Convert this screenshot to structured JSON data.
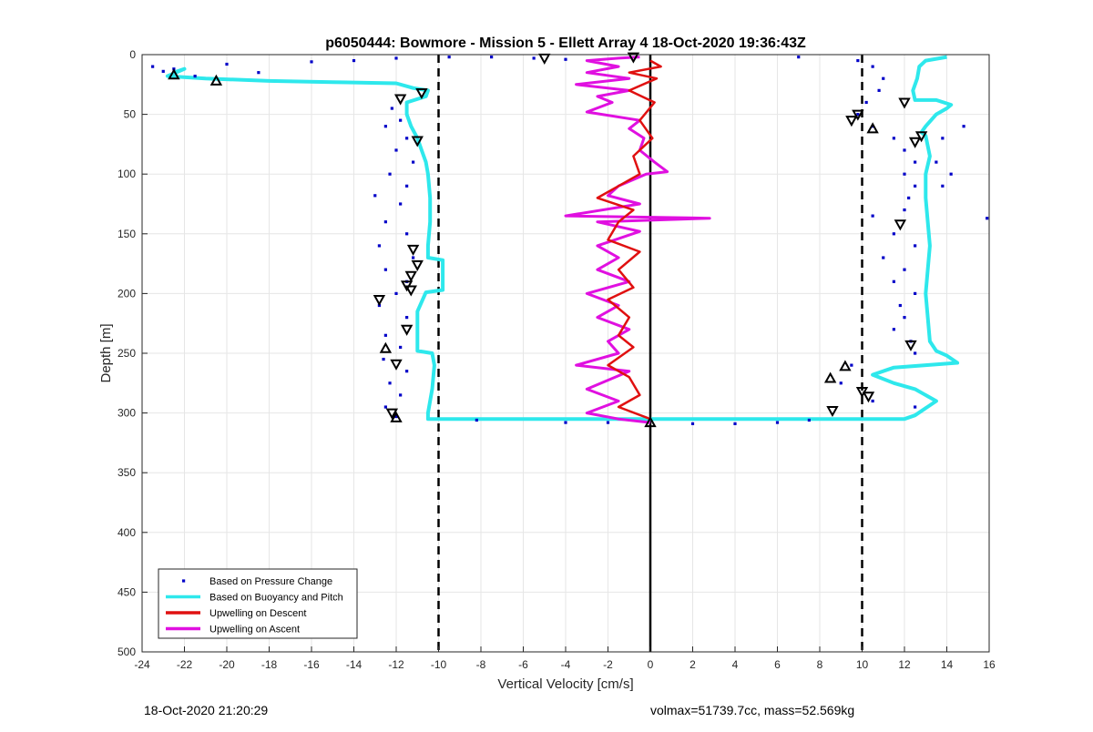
{
  "footer": {
    "left": "18-Oct-2020 21:20:29",
    "right": "volmax=51739.7cc, mass=52.569kg"
  },
  "colors": {
    "pressure": "#0000c8",
    "buoyancy": "#2ee8ec",
    "descent": "#e01010",
    "ascent": "#e010e0",
    "grid": "#e6e6e6",
    "axis": "#262626"
  },
  "chart_data": {
    "type": "line",
    "title": "p6050444: Bowmore - Mission 5 - Ellett Array 4 18-Oct-2020 19:36:43Z",
    "xlabel": "Vertical Velocity [cm/s]",
    "ylabel": "Depth [m]",
    "xlim": [
      -24,
      16
    ],
    "ylim": [
      0,
      500
    ],
    "y_reversed": true,
    "grid": true,
    "xticks": [
      -24,
      -22,
      -20,
      -18,
      -16,
      -14,
      -12,
      -10,
      -8,
      -6,
      -4,
      -2,
      0,
      2,
      4,
      6,
      8,
      10,
      12,
      14,
      16
    ],
    "yticks": [
      0,
      50,
      100,
      150,
      200,
      250,
      300,
      350,
      400,
      450,
      500
    ],
    "legend_position": "bottom-left",
    "legend": [
      {
        "label": "Based on Pressure Change",
        "style": "dots",
        "color": "#0000c8"
      },
      {
        "label": "Based on Buoyancy and Pitch",
        "style": "line",
        "color": "#2ee8ec"
      },
      {
        "label": "Upwelling on Descent",
        "style": "line",
        "color": "#e01010"
      },
      {
        "label": "Upwelling on Ascent",
        "style": "line",
        "color": "#e010e0"
      }
    ],
    "reference_lines": [
      {
        "x": -10,
        "style": "dashed"
      },
      {
        "x": 10,
        "style": "dashed"
      },
      {
        "x": 0,
        "style": "solid"
      }
    ],
    "series": [
      {
        "name": "Based on Buoyancy and Pitch",
        "kind": "line",
        "segments": [
          [
            [
              -22.5,
              15
            ],
            [
              -22.0,
              12
            ],
            [
              -22.8,
              18
            ],
            [
              -21,
              20
            ],
            [
              -18,
              22
            ],
            [
              -15,
              23
            ],
            [
              -12,
              24
            ],
            [
              -11.2,
              28
            ],
            [
              -10.5,
              30
            ],
            [
              -10.6,
              35
            ],
            [
              -11.5,
              40
            ],
            [
              -11.5,
              50
            ],
            [
              -11.3,
              60
            ],
            [
              -11.0,
              70
            ],
            [
              -10.8,
              80
            ],
            [
              -10.6,
              90
            ],
            [
              -10.5,
              100
            ],
            [
              -10.4,
              120
            ],
            [
              -10.4,
              140
            ],
            [
              -10.5,
              160
            ],
            [
              -10.5,
              170
            ],
            [
              -9.8,
              172
            ],
            [
              -9.8,
              197
            ],
            [
              -10.6,
              199
            ],
            [
              -11.0,
              215
            ],
            [
              -11.0,
              240
            ],
            [
              -11.0,
              248
            ],
            [
              -10.3,
              250
            ],
            [
              -10.2,
              260
            ],
            [
              -10.3,
              280
            ],
            [
              -10.5,
              300
            ],
            [
              -10.5,
              305
            ],
            [
              0,
              305
            ],
            [
              8,
              305
            ],
            [
              12,
              305
            ],
            [
              12.5,
              302
            ],
            [
              13.5,
              290
            ],
            [
              12.5,
              280
            ],
            [
              11.5,
              275
            ],
            [
              10.5,
              268
            ],
            [
              11.5,
              262
            ],
            [
              13,
              260
            ],
            [
              14.5,
              258
            ],
            [
              14.0,
              252
            ],
            [
              13.5,
              248
            ],
            [
              13.2,
              240
            ],
            [
              13.1,
              220
            ],
            [
              13.0,
              200
            ],
            [
              13.1,
              180
            ],
            [
              13.2,
              160
            ],
            [
              13.1,
              140
            ],
            [
              13.0,
              120
            ],
            [
              13.0,
              100
            ],
            [
              13.2,
              85
            ],
            [
              13.0,
              68
            ],
            [
              12.8,
              65
            ],
            [
              13.0,
              60
            ],
            [
              13.5,
              50
            ],
            [
              14.0,
              45
            ],
            [
              14.2,
              42
            ],
            [
              13.5,
              38
            ],
            [
              12.5,
              38
            ],
            [
              12.4,
              30
            ],
            [
              12.6,
              20
            ],
            [
              12.7,
              10
            ],
            [
              13,
              5
            ],
            [
              14,
              2
            ]
          ]
        ]
      },
      {
        "name": "Upwelling on Ascent",
        "kind": "line",
        "points": [
          [
            -0.5,
            2
          ],
          [
            -1.5,
            3
          ],
          [
            -3,
            5
          ],
          [
            -1.5,
            10
          ],
          [
            -3.0,
            15
          ],
          [
            -1.0,
            20
          ],
          [
            -3.5,
            25
          ],
          [
            -1.0,
            30
          ],
          [
            -2.5,
            35
          ],
          [
            -1.8,
            40
          ],
          [
            -3.0,
            48
          ],
          [
            -0.5,
            55
          ],
          [
            -1.0,
            62
          ],
          [
            -0.3,
            70
          ],
          [
            -0.5,
            80
          ],
          [
            0.2,
            90
          ],
          [
            0.8,
            98
          ],
          [
            -0.2,
            100
          ],
          [
            -1.5,
            110
          ],
          [
            -2.0,
            118
          ],
          [
            -0.5,
            125
          ],
          [
            -4.0,
            135
          ],
          [
            2.8,
            137
          ],
          [
            -2.5,
            140
          ],
          [
            -0.5,
            148
          ],
          [
            -2.5,
            160
          ],
          [
            -1.5,
            170
          ],
          [
            -2.5,
            180
          ],
          [
            -1.0,
            190
          ],
          [
            -3.0,
            200
          ],
          [
            -1.5,
            210
          ],
          [
            -2.5,
            220
          ],
          [
            -1.0,
            230
          ],
          [
            -2.0,
            240
          ],
          [
            -1.5,
            250
          ],
          [
            -3.5,
            260
          ],
          [
            -1.0,
            265
          ],
          [
            -3.0,
            280
          ],
          [
            -1.5,
            290
          ],
          [
            -3.0,
            300
          ],
          [
            -1.5,
            305
          ],
          [
            0,
            308
          ]
        ]
      },
      {
        "name": "Upwelling on Descent",
        "kind": "line",
        "points": [
          [
            0,
            5
          ],
          [
            0.5,
            10
          ],
          [
            -1.0,
            15
          ],
          [
            0.3,
            20
          ],
          [
            -1.0,
            30
          ],
          [
            0.2,
            40
          ],
          [
            -0.5,
            55
          ],
          [
            0.1,
            70
          ],
          [
            -0.8,
            85
          ],
          [
            -0.5,
            100
          ],
          [
            -1.5,
            110
          ],
          [
            -2.5,
            120
          ],
          [
            -0.8,
            130
          ],
          [
            -1.5,
            140
          ],
          [
            -2.0,
            155
          ],
          [
            -0.5,
            165
          ],
          [
            -1.5,
            180
          ],
          [
            -0.8,
            195
          ],
          [
            -2.0,
            205
          ],
          [
            -1.0,
            220
          ],
          [
            -1.5,
            235
          ],
          [
            -0.8,
            245
          ],
          [
            -2.0,
            260
          ],
          [
            -1.0,
            270
          ],
          [
            -0.5,
            285
          ],
          [
            -1.5,
            295
          ],
          [
            0,
            305
          ]
        ]
      },
      {
        "name": "Based on Pressure Change",
        "kind": "scatter",
        "points": [
          [
            -23.5,
            10
          ],
          [
            -22.5,
            12
          ],
          [
            -23.0,
            14
          ],
          [
            -21.5,
            18
          ],
          [
            -20.0,
            8
          ],
          [
            -18.5,
            15
          ],
          [
            -16.0,
            6
          ],
          [
            -14.0,
            5
          ],
          [
            -12.0,
            3
          ],
          [
            -9.5,
            2
          ],
          [
            -7.5,
            2
          ],
          [
            -5.5,
            3
          ],
          [
            -4.0,
            4
          ],
          [
            -12.2,
            45
          ],
          [
            -11.8,
            55
          ],
          [
            -12.5,
            60
          ],
          [
            -11.5,
            70
          ],
          [
            -12.0,
            80
          ],
          [
            -11.2,
            90
          ],
          [
            -12.3,
            100
          ],
          [
            -11.5,
            110
          ],
          [
            -13.0,
            118
          ],
          [
            -11.8,
            125
          ],
          [
            -12.5,
            140
          ],
          [
            -11.5,
            150
          ],
          [
            -12.8,
            160
          ],
          [
            -11.2,
            170
          ],
          [
            -12.5,
            180
          ],
          [
            -11.5,
            190
          ],
          [
            -12.0,
            200
          ],
          [
            -12.8,
            210
          ],
          [
            -11.5,
            220
          ],
          [
            -12.5,
            235
          ],
          [
            -11.8,
            245
          ],
          [
            -12.6,
            255
          ],
          [
            -11.5,
            265
          ],
          [
            -12.3,
            275
          ],
          [
            -11.8,
            285
          ],
          [
            -12.5,
            295
          ],
          [
            -12.0,
            303
          ],
          [
            -8.2,
            306
          ],
          [
            -4.0,
            308
          ],
          [
            -2.0,
            308
          ],
          [
            2.0,
            309
          ],
          [
            4.0,
            309
          ],
          [
            6.0,
            308
          ],
          [
            7.5,
            306
          ],
          [
            7.0,
            2
          ],
          [
            9.8,
            5
          ],
          [
            10.5,
            10
          ],
          [
            11.0,
            20
          ],
          [
            10.8,
            30
          ],
          [
            10.2,
            40
          ],
          [
            9.8,
            50
          ],
          [
            10.5,
            60
          ],
          [
            11.5,
            70
          ],
          [
            12.0,
            80
          ],
          [
            12.5,
            90
          ],
          [
            12.0,
            100
          ],
          [
            12.5,
            110
          ],
          [
            12.2,
            120
          ],
          [
            12.0,
            130
          ],
          [
            10.5,
            135
          ],
          [
            11.5,
            150
          ],
          [
            12.5,
            160
          ],
          [
            11.0,
            170
          ],
          [
            12.0,
            180
          ],
          [
            11.5,
            190
          ],
          [
            12.5,
            200
          ],
          [
            11.8,
            210
          ],
          [
            12.0,
            220
          ],
          [
            11.5,
            230
          ],
          [
            12.3,
            240
          ],
          [
            12.5,
            250
          ],
          [
            9.5,
            260
          ],
          [
            9.0,
            275
          ],
          [
            10.5,
            290
          ],
          [
            12.5,
            295
          ],
          [
            15.9,
            137
          ],
          [
            14.8,
            60
          ],
          [
            14.2,
            100
          ],
          [
            13.8,
            70
          ],
          [
            13.5,
            90
          ],
          [
            13.8,
            110
          ]
        ]
      },
      {
        "name": "",
        "kind": "markers",
        "points": [
          {
            "x": -22.5,
            "y": 17,
            "m": "up"
          },
          {
            "x": -20.5,
            "y": 22,
            "m": "up"
          },
          {
            "x": -11.8,
            "y": 37,
            "m": "down"
          },
          {
            "x": -10.8,
            "y": 32,
            "m": "down"
          },
          {
            "x": -11.0,
            "y": 72,
            "m": "down"
          },
          {
            "x": -11.2,
            "y": 163,
            "m": "down"
          },
          {
            "x": -11.0,
            "y": 176,
            "m": "down"
          },
          {
            "x": -11.3,
            "y": 185,
            "m": "down"
          },
          {
            "x": -11.5,
            "y": 193,
            "m": "down"
          },
          {
            "x": -11.3,
            "y": 197,
            "m": "down"
          },
          {
            "x": -12.8,
            "y": 205,
            "m": "down"
          },
          {
            "x": -11.5,
            "y": 230,
            "m": "down"
          },
          {
            "x": -12.5,
            "y": 246,
            "m": "up"
          },
          {
            "x": -12.0,
            "y": 259,
            "m": "down"
          },
          {
            "x": -12.2,
            "y": 300,
            "m": "down"
          },
          {
            "x": -12.0,
            "y": 304,
            "m": "up"
          },
          {
            "x": -5.0,
            "y": 3,
            "m": "down"
          },
          {
            "x": -0.8,
            "y": 2,
            "m": "down"
          },
          {
            "x": 0,
            "y": 308,
            "m": "up"
          },
          {
            "x": 9.8,
            "y": 50,
            "m": "down"
          },
          {
            "x": 9.5,
            "y": 55,
            "m": "down"
          },
          {
            "x": 10.5,
            "y": 62,
            "m": "up"
          },
          {
            "x": 12.0,
            "y": 40,
            "m": "down"
          },
          {
            "x": 12.8,
            "y": 68,
            "m": "down"
          },
          {
            "x": 12.5,
            "y": 73,
            "m": "down"
          },
          {
            "x": 11.8,
            "y": 142,
            "m": "down"
          },
          {
            "x": 12.3,
            "y": 243,
            "m": "down"
          },
          {
            "x": 9.2,
            "y": 261,
            "m": "up"
          },
          {
            "x": 8.5,
            "y": 271,
            "m": "up"
          },
          {
            "x": 10.0,
            "y": 282,
            "m": "down"
          },
          {
            "x": 10.3,
            "y": 286,
            "m": "down"
          },
          {
            "x": 8.6,
            "y": 298,
            "m": "down"
          }
        ]
      }
    ]
  }
}
